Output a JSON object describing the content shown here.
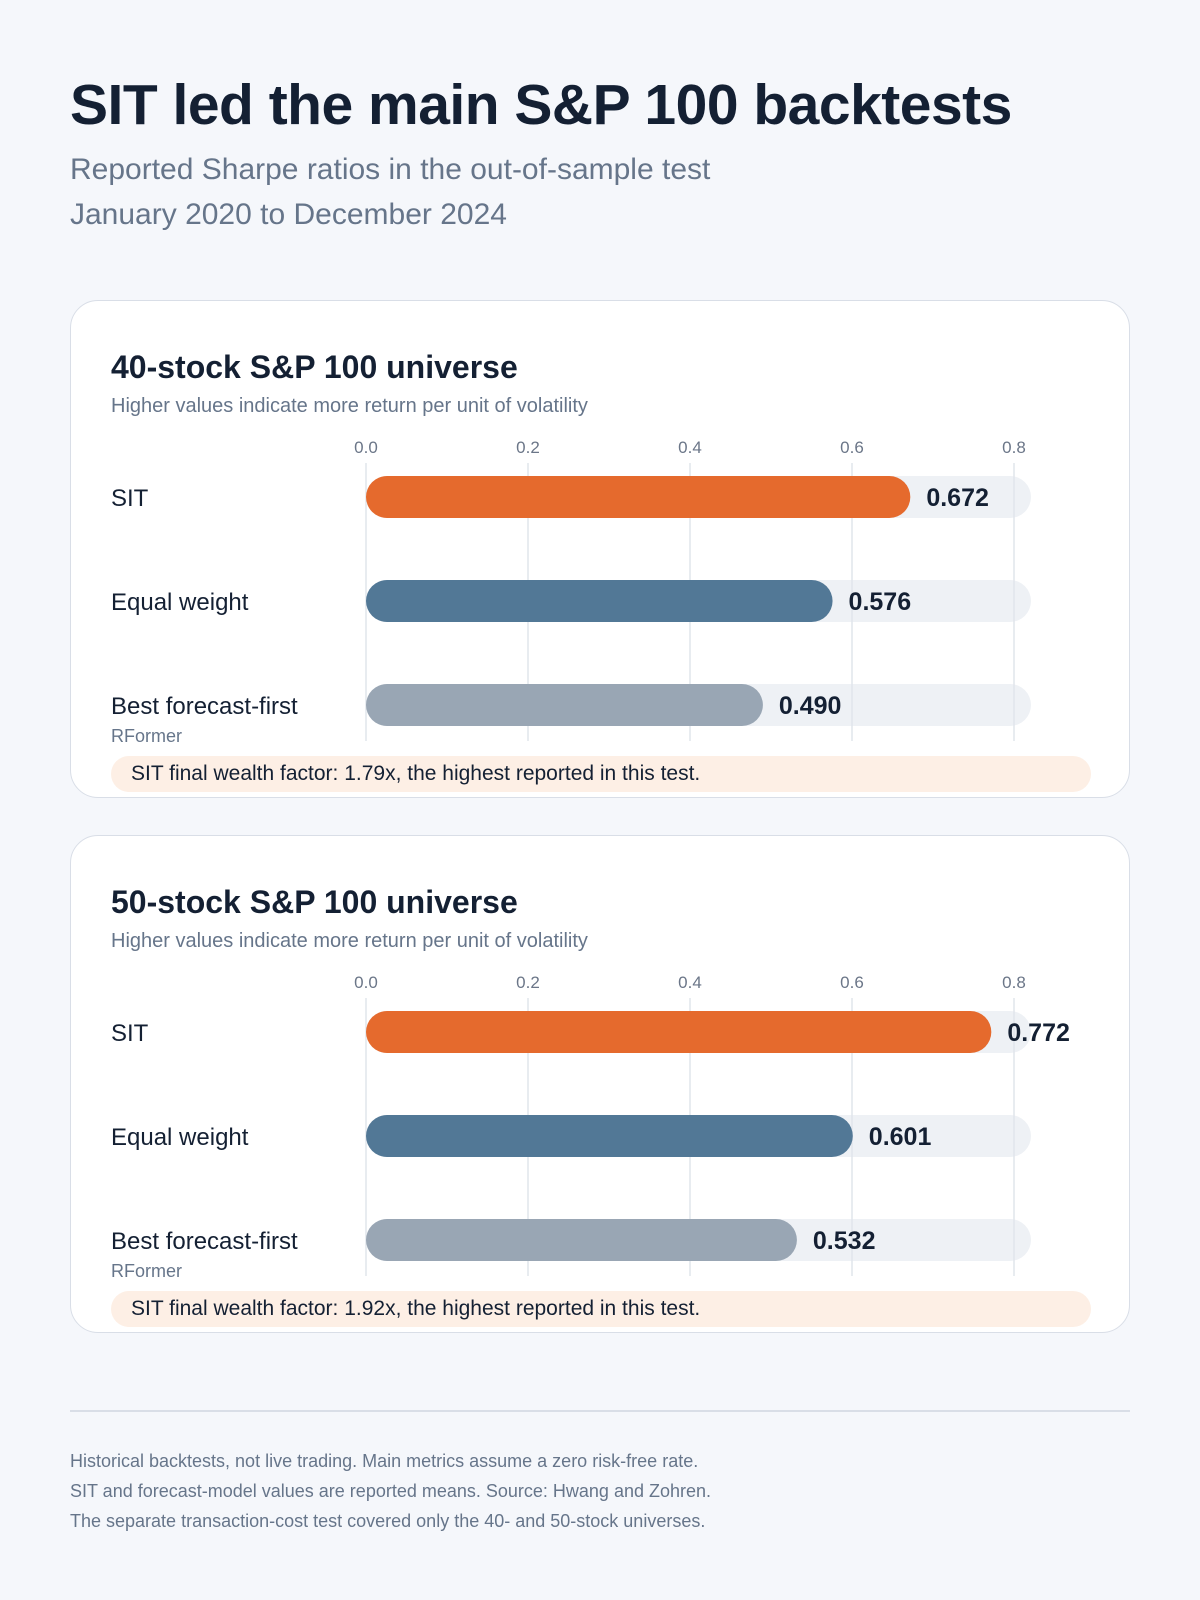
{
  "header": {
    "title": "SIT led the main S&P 100 backtests",
    "subtitle_line1": "Reported Sharpe ratios in the out-of-sample test",
    "subtitle_line2": "January 2020 to December 2024"
  },
  "colors": {
    "sit": "#e56a2d",
    "equal_weight": "#527896",
    "forecast_first": "#99a6b4",
    "track": "#eef1f5",
    "grid": "#e1e5eb",
    "callout_bg": "#fdefe5"
  },
  "chart_data": [
    {
      "type": "bar",
      "orientation": "horizontal",
      "title": "40-stock S&P 100 universe",
      "subtitle": "Higher values indicate more return per unit of volatility",
      "categories": [
        "SIT",
        "Equal weight",
        "Best forecast-first"
      ],
      "category_sublabels": [
        "",
        "",
        "RFormer"
      ],
      "values": [
        0.672,
        0.576,
        0.49
      ],
      "value_labels": [
        "0.672",
        "0.576",
        "0.490"
      ],
      "xlim": [
        0,
        0.8
      ],
      "ticks": [
        0.0,
        0.2,
        0.4,
        0.6,
        0.8
      ],
      "tick_labels": [
        "0.0",
        "0.2",
        "0.4",
        "0.6",
        "0.8"
      ],
      "grid": true,
      "callout": "SIT final wealth factor: 1.79x, the highest reported in this test."
    },
    {
      "type": "bar",
      "orientation": "horizontal",
      "title": "50-stock S&P 100 universe",
      "subtitle": "Higher values indicate more return per unit of volatility",
      "categories": [
        "SIT",
        "Equal weight",
        "Best forecast-first"
      ],
      "category_sublabels": [
        "",
        "",
        "RFormer"
      ],
      "values": [
        0.772,
        0.601,
        0.532
      ],
      "value_labels": [
        "0.772",
        "0.601",
        "0.532"
      ],
      "xlim": [
        0,
        0.8
      ],
      "ticks": [
        0.0,
        0.2,
        0.4,
        0.6,
        0.8
      ],
      "tick_labels": [
        "0.0",
        "0.2",
        "0.4",
        "0.6",
        "0.8"
      ],
      "grid": true,
      "callout": "SIT final wealth factor: 1.92x, the highest reported in this test."
    }
  ],
  "footer": {
    "line1": "Historical backtests, not live trading. Main metrics assume a zero risk-free rate.",
    "line2": "SIT and forecast-model values are reported means. Source: Hwang and Zohren.",
    "line3": "The separate transaction-cost test covered only the 40- and 50-stock universes."
  }
}
